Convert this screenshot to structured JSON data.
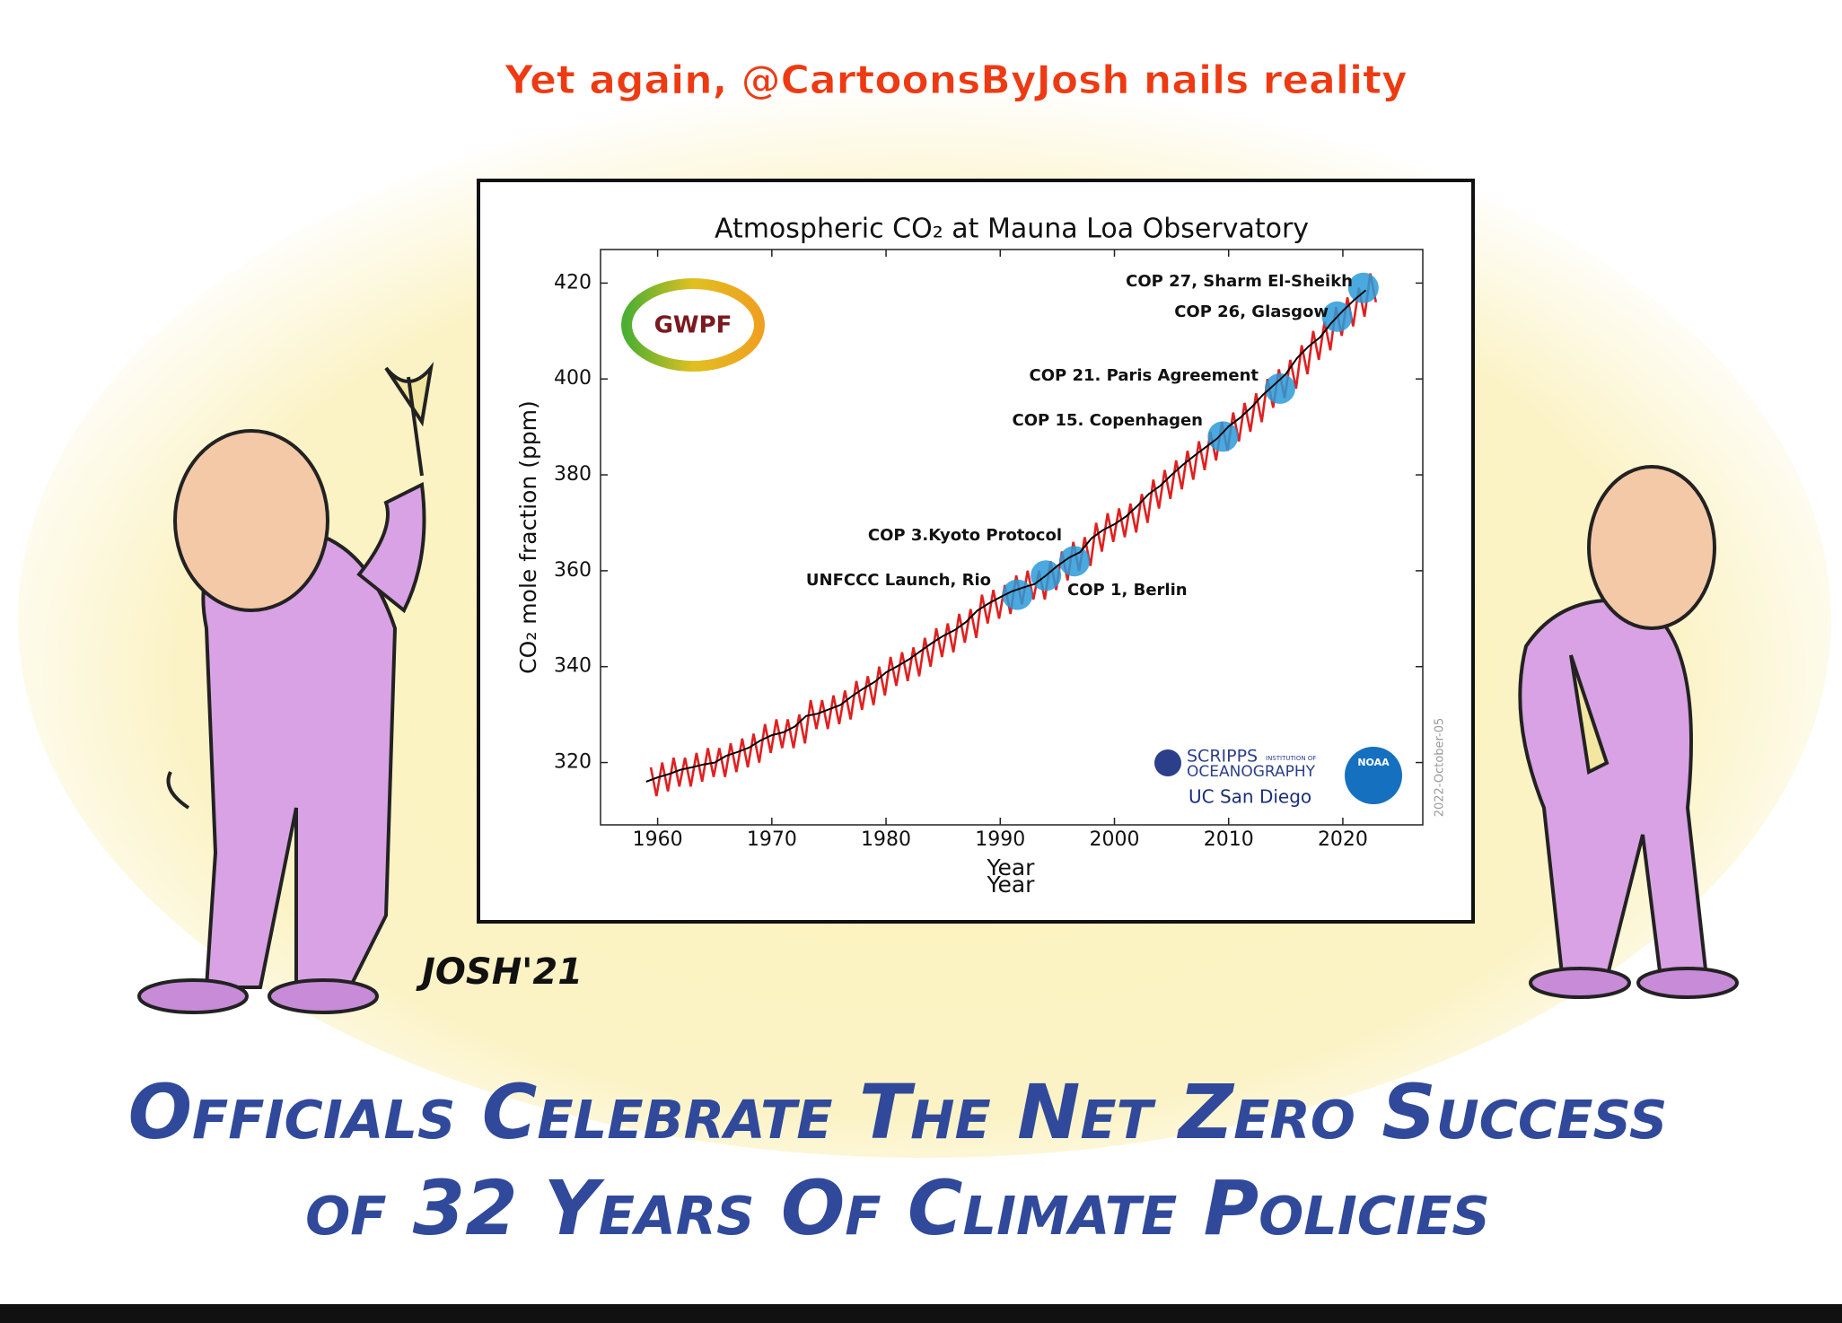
{
  "header": "Yet again, @CartoonsByJosh nails reality",
  "chart_data": {
    "type": "line",
    "title": "Atmospheric CO₂ at Mauna Loa Observatory",
    "ylabel": "CO₂ mole fraction (ppm)",
    "xlabel": "Year",
    "xlabel_repeat": "Year",
    "date_stamp": "2022-October-05",
    "xlim": [
      1955,
      2027
    ],
    "ylim": [
      307,
      427
    ],
    "xticks": [
      1960,
      1970,
      1980,
      1990,
      2000,
      2010,
      2020
    ],
    "yticks": [
      320,
      340,
      360,
      380,
      400,
      420
    ],
    "series": [
      {
        "color": "#e02020",
        "x": [
          1959.4,
          1959.9,
          1960.4,
          1960.9,
          1961.4,
          1961.9,
          1962.4,
          1962.9,
          1963.4,
          1963.9,
          1964.4,
          1964.9,
          1965.4,
          1965.9,
          1966.4,
          1966.9,
          1967.4,
          1967.9,
          1968.4,
          1968.9,
          1969.4,
          1969.9,
          1970.4,
          1970.9,
          1971.4,
          1971.9,
          1972.4,
          1972.9,
          1973.4,
          1973.9,
          1974.4,
          1974.9,
          1975.4,
          1975.9,
          1976.4,
          1976.9,
          1977.4,
          1977.9,
          1978.4,
          1978.9,
          1979.4,
          1979.9,
          1980.4,
          1980.9,
          1981.4,
          1981.9,
          1982.4,
          1982.9,
          1983.4,
          1983.9,
          1984.4,
          1984.9,
          1985.4,
          1985.9,
          1986.4,
          1986.9,
          1987.4,
          1987.9,
          1988.4,
          1988.9,
          1989.4,
          1989.9,
          1990.4,
          1990.9,
          1991.4,
          1991.9,
          1992.4,
          1992.9,
          1993.4,
          1993.9,
          1994.4,
          1994.9,
          1995.4,
          1995.9,
          1996.4,
          1996.9,
          1997.4,
          1997.9,
          1998.4,
          1998.9,
          1999.4,
          1999.9,
          2000.4,
          2000.9,
          2001.4,
          2001.9,
          2002.4,
          2002.9,
          2003.4,
          2003.9,
          2004.4,
          2004.9,
          2005.4,
          2005.9,
          2006.4,
          2006.9,
          2007.4,
          2007.9,
          2008.4,
          2008.9,
          2009.4,
          2009.9,
          2010.4,
          2010.9,
          2011.4,
          2011.9,
          2012.4,
          2012.9,
          2013.4,
          2013.9,
          2014.4,
          2014.9,
          2015.4,
          2015.9,
          2016.4,
          2016.9,
          2017.4,
          2017.9,
          2018.4,
          2018.9,
          2019.4,
          2019.9,
          2020.4,
          2020.9,
          2021.4,
          2021.9,
          2022.4,
          2022.9
        ],
        "values": [
          319,
          313,
          320,
          314,
          321,
          315,
          321,
          315,
          322,
          316,
          323,
          317,
          323,
          317,
          324,
          318,
          325,
          319,
          326,
          320,
          328,
          322,
          329,
          323,
          329,
          323,
          330,
          324,
          333,
          327,
          333,
          327,
          334,
          328,
          335,
          329,
          337,
          331,
          338,
          332,
          340,
          334,
          342,
          336,
          343,
          337,
          344,
          338,
          346,
          340,
          348,
          342,
          349,
          343,
          351,
          345,
          352,
          346,
          355,
          349,
          356,
          350,
          357,
          351,
          359,
          353,
          360,
          354,
          360,
          354,
          362,
          356,
          364,
          358,
          366,
          360,
          367,
          361,
          370,
          364,
          372,
          366,
          373,
          367,
          374,
          368,
          376,
          370,
          379,
          373,
          381,
          375,
          383,
          377,
          385,
          379,
          387,
          381,
          389,
          383,
          391,
          385,
          393,
          387,
          395,
          389,
          397,
          391,
          400,
          394,
          402,
          396,
          404,
          398,
          407,
          401,
          410,
          404,
          412,
          406,
          415,
          409,
          417,
          411,
          419,
          413,
          422,
          416
        ]
      },
      {
        "color": "#000000",
        "x": [
          1959,
          1960,
          1961,
          1962,
          1963,
          1964,
          1965,
          1966,
          1967,
          1968,
          1969,
          1970,
          1971,
          1972,
          1973,
          1974,
          1975,
          1976,
          1977,
          1978,
          1979,
          1980,
          1981,
          1982,
          1983,
          1984,
          1985,
          1986,
          1987,
          1988,
          1989,
          1990,
          1991,
          1992,
          1993,
          1994,
          1995,
          1996,
          1997,
          1998,
          1999,
          2000,
          2001,
          2002,
          2003,
          2004,
          2005,
          2006,
          2007,
          2008,
          2009,
          2010,
          2011,
          2012,
          2013,
          2014,
          2015,
          2016,
          2017,
          2018,
          2019,
          2020,
          2021,
          2022
        ],
        "values": [
          316.0,
          316.9,
          317.6,
          318.5,
          319.0,
          319.6,
          320.0,
          321.4,
          322.2,
          323.1,
          324.6,
          325.7,
          326.3,
          327.5,
          329.7,
          330.2,
          331.1,
          332.0,
          333.8,
          335.4,
          336.8,
          338.8,
          340.1,
          341.5,
          343.2,
          344.9,
          346.4,
          347.6,
          349.3,
          351.7,
          353.2,
          354.5,
          355.7,
          356.5,
          357.2,
          359.0,
          361.0,
          362.7,
          363.9,
          366.8,
          368.5,
          369.7,
          371.3,
          373.5,
          376.0,
          377.7,
          380.0,
          382.1,
          384.0,
          385.8,
          387.6,
          390.1,
          391.9,
          394.1,
          396.7,
          398.8,
          401.0,
          404.4,
          406.8,
          408.7,
          411.7,
          414.2,
          416.5,
          418.5
        ]
      }
    ],
    "annotations": [
      {
        "text": "UNFCCC Launch, Rio",
        "x": 1991.5,
        "y": 355
      },
      {
        "text": "COP 1, Berlin",
        "x": 1994,
        "y": 359
      },
      {
        "text": "COP 3.Kyoto Protocol",
        "x": 1996.5,
        "y": 362
      },
      {
        "text": "COP 15. Copenhagen",
        "x": 2009.5,
        "y": 388
      },
      {
        "text": "COP 21. Paris Agreement",
        "x": 2014.5,
        "y": 398
      },
      {
        "text": "COP 26, Glasgow",
        "x": 2019.5,
        "y": 413
      },
      {
        "text": "COP 27, Sharm El-Sheikh",
        "x": 2021.8,
        "y": 419
      }
    ]
  },
  "logos": {
    "gwpf": "GWPF",
    "scripps": "SCRIPPS",
    "scripps_small": "INSTITUTION OF",
    "oceanography": "OCEANOGRAPHY",
    "ucsd": "UC San Diego",
    "noaa": "NOAA"
  },
  "signature": "JOSH'21",
  "caption": [
    "Officials Celebrate The Net Zero Success",
    "of 32 Years Of Climate Policies"
  ]
}
